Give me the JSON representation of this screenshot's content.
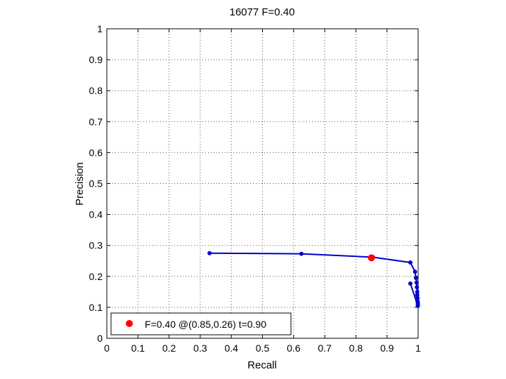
{
  "chart_data": {
    "type": "line",
    "title": "16077 F=0.40",
    "xlabel": "Recall",
    "ylabel": "Precision",
    "xlim": [
      0,
      1
    ],
    "ylim": [
      0,
      1
    ],
    "grid": true,
    "x_ticks": [
      "0",
      "0.1",
      "0.2",
      "0.3",
      "0.4",
      "0.5",
      "0.6",
      "0.7",
      "0.8",
      "0.9",
      "1"
    ],
    "y_ticks": [
      "0",
      "0.1",
      "0.2",
      "0.3",
      "0.4",
      "0.5",
      "0.6",
      "0.7",
      "0.8",
      "0.9",
      "1"
    ],
    "series": [
      {
        "color": "#0000cc",
        "x": [
          0.33,
          0.625,
          0.855,
          0.975,
          0.99,
          0.993,
          0.995,
          0.996,
          0.997,
          0.997,
          0.998,
          0.998,
          0.999,
          0.999,
          0.999,
          0.975
        ],
        "y": [
          0.275,
          0.273,
          0.262,
          0.245,
          0.215,
          0.195,
          0.18,
          0.165,
          0.15,
          0.14,
          0.13,
          0.12,
          0.115,
          0.11,
          0.105,
          0.177
        ]
      }
    ],
    "marker": {
      "x": 0.85,
      "y": 0.26,
      "color": "#ff0000"
    },
    "legend": {
      "position": "bottom-left",
      "text": "F=0.40 @(0.85,0.26) t=0.90"
    }
  }
}
